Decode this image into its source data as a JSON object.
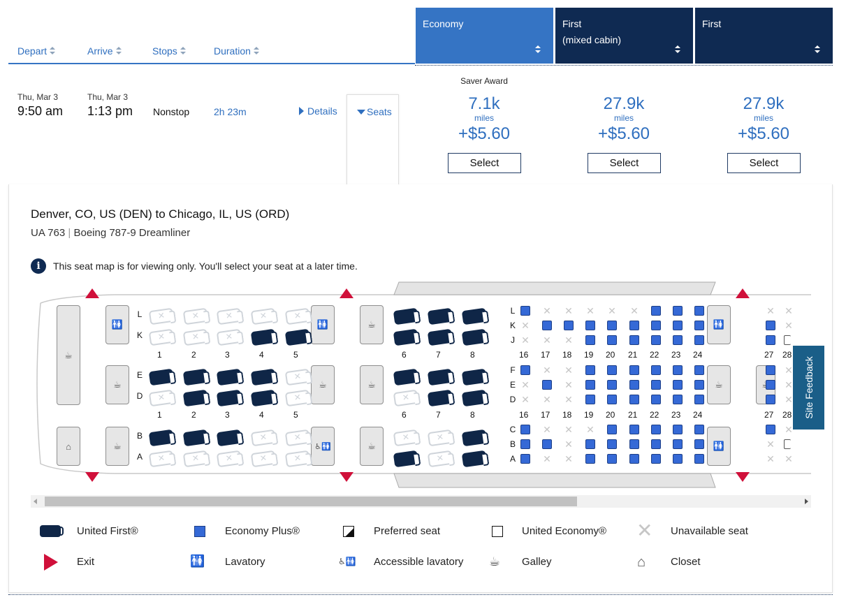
{
  "header": {
    "columns": [
      "Depart",
      "Arrive",
      "Stops",
      "Duration"
    ],
    "fare_columns": [
      {
        "label": "Economy",
        "label2": ""
      },
      {
        "label": "First",
        "label2": "(mixed cabin)"
      },
      {
        "label": "First",
        "label2": ""
      }
    ]
  },
  "flight": {
    "depart_date": "Thu, Mar 3",
    "depart_time": "9:50 am",
    "arrive_date": "Thu, Mar 3",
    "arrive_time": "1:13 pm",
    "stops": "Nonstop",
    "duration": "2h 23m",
    "details_label": "Details",
    "seats_label": "Seats"
  },
  "fares": [
    {
      "tag": "Saver Award",
      "miles": "7.1k",
      "miles_label": "miles",
      "fee": "+$5.60",
      "select_label": "Select"
    },
    {
      "tag": "",
      "miles": "27.9k",
      "miles_label": "miles",
      "fee": "+$5.60",
      "select_label": "Select"
    },
    {
      "tag": "",
      "miles": "27.9k",
      "miles_label": "miles",
      "fee": "+$5.60",
      "select_label": "Select"
    }
  ],
  "seatmap": {
    "route": "Denver, CO, US (DEN) to Chicago, IL, US (ORD)",
    "flight_no": "UA 763",
    "aircraft": "Boeing 787-9 Dreamliner",
    "notice": "This seat map is for viewing only. You'll select your seat at a later time.",
    "first_rows": [
      "1",
      "2",
      "3",
      "4",
      "5",
      "6",
      "7",
      "8"
    ],
    "first_letters_top": [
      "L",
      "K"
    ],
    "first_letters_mid": [
      "E",
      "D"
    ],
    "first_letters_bot": [
      "B",
      "A"
    ],
    "econ_rows": [
      "16",
      "17",
      "18",
      "19",
      "20",
      "21",
      "22",
      "23",
      "24",
      "27",
      "28"
    ],
    "econ_letters_top": [
      "L",
      "K",
      "J"
    ],
    "econ_letters_mid": [
      "F",
      "E",
      "D"
    ],
    "econ_letters_bot": [
      "C",
      "B",
      "A"
    ]
  },
  "legend": {
    "united_first": "United First®",
    "economy_plus": "Economy Plus®",
    "preferred": "Preferred seat",
    "united_economy": "United Economy®",
    "unavailable": "Unavailable seat",
    "exit": "Exit",
    "lavatory": "Lavatory",
    "accessible_lavatory": "Accessible lavatory",
    "galley": "Galley",
    "closet": "Closet"
  },
  "feedback_label": "Site Feedback",
  "colors": {
    "economy_header": "#3574c4",
    "first_header": "#0f2a52",
    "link_blue": "#2f6fbf",
    "exit_red": "#d0103a",
    "econ_plus_seat": "#3569d6",
    "first_seat": "#0f2647",
    "feedback_bg": "#1a5e88"
  },
  "icons": [
    "sort-icon",
    "caret-right-icon",
    "caret-down-icon",
    "info-icon",
    "galley-icon",
    "lavatory-icon",
    "accessible-lavatory-icon",
    "closet-icon",
    "exit-icon"
  ]
}
